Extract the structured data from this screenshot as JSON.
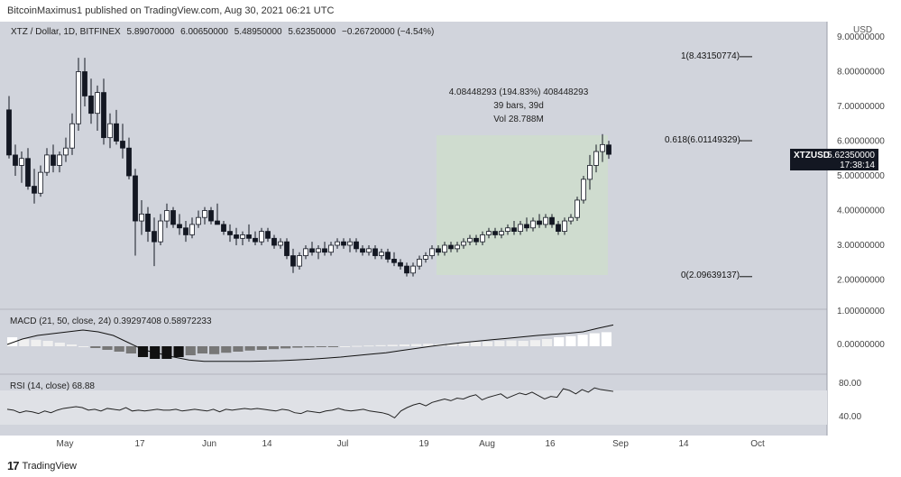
{
  "header": {
    "publisher": "BitcoinMaximus1 published on TradingView.com, Aug 30, 2021 06:21 UTC"
  },
  "footer": {
    "brand": "TradingView",
    "logo_glyph": "17"
  },
  "symbol": {
    "title": "XTZ / Dollar, 1D, BITFINEX",
    "open": "5.89070000",
    "high": "6.00650000",
    "low": "5.48950000",
    "close": "5.62350000",
    "change": "−0.26720000 (−4.54%)",
    "tag_symbol": "XTZUSD",
    "tag_price": "5.62350000",
    "tag_countdown": "17:38:14",
    "currency": "USD"
  },
  "measure": {
    "line1": "4.08448293 (194.83%) 408448293",
    "line2": "39 bars, 39d",
    "line3": "Vol 28.788M"
  },
  "fib": [
    {
      "label": "1(8.43150774)",
      "value": 8.4315
    },
    {
      "label": "0.618(6.01149329)",
      "value": 6.0115
    },
    {
      "label": "0(2.09639137)",
      "value": 2.0964
    }
  ],
  "indicators": {
    "macd_label": "MACD (21, 50, close, 24)",
    "macd_v1": "0.39297408",
    "macd_v2": "0.58972233",
    "rsi_label": "RSI (14, close)",
    "rsi_value": "68.88"
  },
  "colors": {
    "bg": "#d1d4dc",
    "box": "#cfdccf",
    "candle": "#131722",
    "upcandle": "#ffffff",
    "rsiband": "#dfe1e6"
  },
  "chart_data": {
    "type": "candlestick",
    "price_axis": {
      "ticks": [
        "9.00000000",
        "8.00000000",
        "7.00000000",
        "6.00000000",
        "5.00000000",
        "4.00000000",
        "3.00000000",
        "2.00000000"
      ],
      "ylim": [
        1.0,
        9.0
      ]
    },
    "macd_axis": {
      "ticks": [
        "1.00000000",
        "0.00000000"
      ]
    },
    "rsi_axis": {
      "ticks": [
        "80.00",
        "40.00"
      ]
    },
    "time_axis": [
      "May",
      "17",
      "Jun",
      "14",
      "Jul",
      "19",
      "Aug",
      "16",
      "Sep",
      "14",
      "Oct"
    ],
    "ohlc": [
      [
        6.9,
        7.3,
        5.5,
        5.6
      ],
      [
        5.6,
        5.9,
        5.0,
        5.3
      ],
      [
        5.3,
        5.7,
        4.8,
        5.5
      ],
      [
        5.5,
        5.8,
        4.6,
        4.7
      ],
      [
        4.7,
        5.2,
        4.2,
        4.5
      ],
      [
        4.5,
        5.3,
        4.4,
        5.1
      ],
      [
        5.1,
        5.8,
        5.0,
        5.6
      ],
      [
        5.6,
        5.9,
        5.1,
        5.3
      ],
      [
        5.3,
        5.7,
        5.1,
        5.6
      ],
      [
        5.6,
        6.1,
        5.4,
        5.8
      ],
      [
        5.8,
        6.8,
        5.6,
        6.5
      ],
      [
        6.5,
        8.4,
        6.3,
        8.0
      ],
      [
        8.0,
        8.4,
        7.0,
        7.3
      ],
      [
        7.3,
        7.8,
        6.5,
        6.8
      ],
      [
        6.8,
        7.6,
        6.3,
        7.4
      ],
      [
        7.4,
        7.8,
        5.9,
        6.1
      ],
      [
        6.1,
        6.8,
        5.8,
        6.5
      ],
      [
        6.5,
        6.9,
        5.9,
        6.0
      ],
      [
        6.0,
        6.5,
        5.5,
        5.8
      ],
      [
        5.8,
        6.1,
        4.9,
        5.0
      ],
      [
        5.0,
        5.2,
        2.7,
        3.7
      ],
      [
        3.7,
        4.3,
        3.3,
        3.9
      ],
      [
        3.9,
        4.1,
        3.1,
        3.4
      ],
      [
        3.4,
        3.8,
        2.4,
        3.1
      ],
      [
        3.1,
        3.9,
        3.0,
        3.7
      ],
      [
        3.7,
        4.2,
        3.5,
        4.0
      ],
      [
        4.0,
        4.1,
        3.5,
        3.6
      ],
      [
        3.6,
        3.9,
        3.3,
        3.5
      ],
      [
        3.5,
        3.7,
        3.1,
        3.3
      ],
      [
        3.3,
        3.8,
        3.2,
        3.6
      ],
      [
        3.6,
        4.0,
        3.5,
        3.8
      ],
      [
        3.8,
        4.1,
        3.6,
        4.0
      ],
      [
        4.0,
        4.1,
        3.6,
        3.7
      ],
      [
        3.7,
        4.2,
        3.6,
        3.6
      ],
      [
        3.6,
        3.7,
        3.3,
        3.4
      ],
      [
        3.4,
        3.6,
        3.1,
        3.3
      ],
      [
        3.3,
        3.5,
        3.0,
        3.2
      ],
      [
        3.2,
        3.4,
        3.0,
        3.3
      ],
      [
        3.3,
        3.6,
        3.1,
        3.2
      ],
      [
        3.2,
        3.4,
        3.0,
        3.1
      ],
      [
        3.1,
        3.5,
        3.0,
        3.4
      ],
      [
        3.4,
        3.5,
        3.1,
        3.2
      ],
      [
        3.2,
        3.3,
        2.9,
        3.0
      ],
      [
        3.0,
        3.2,
        2.9,
        3.1
      ],
      [
        3.1,
        3.2,
        2.6,
        2.7
      ],
      [
        2.7,
        2.9,
        2.2,
        2.4
      ],
      [
        2.4,
        2.8,
        2.3,
        2.7
      ],
      [
        2.7,
        3.0,
        2.6,
        2.9
      ],
      [
        2.9,
        3.1,
        2.7,
        2.8
      ],
      [
        2.8,
        3.0,
        2.6,
        2.9
      ],
      [
        2.9,
        3.1,
        2.7,
        2.8
      ],
      [
        2.8,
        3.1,
        2.7,
        3.0
      ],
      [
        3.0,
        3.2,
        2.9,
        3.1
      ],
      [
        3.1,
        3.2,
        2.9,
        3.0
      ],
      [
        3.0,
        3.2,
        2.8,
        3.1
      ],
      [
        3.1,
        3.2,
        2.8,
        2.9
      ],
      [
        2.9,
        3.0,
        2.7,
        2.8
      ],
      [
        2.8,
        3.0,
        2.7,
        2.9
      ],
      [
        2.9,
        3.0,
        2.6,
        2.7
      ],
      [
        2.7,
        2.9,
        2.6,
        2.8
      ],
      [
        2.8,
        2.9,
        2.5,
        2.6
      ],
      [
        2.6,
        2.8,
        2.4,
        2.5
      ],
      [
        2.5,
        2.6,
        2.3,
        2.4
      ],
      [
        2.4,
        2.5,
        2.1,
        2.2
      ],
      [
        2.2,
        2.5,
        2.1,
        2.4
      ],
      [
        2.4,
        2.7,
        2.3,
        2.6
      ],
      [
        2.6,
        2.8,
        2.5,
        2.7
      ],
      [
        2.7,
        3.0,
        2.6,
        2.9
      ],
      [
        2.9,
        3.0,
        2.7,
        2.8
      ],
      [
        2.8,
        3.1,
        2.7,
        3.0
      ],
      [
        3.0,
        3.1,
        2.8,
        2.9
      ],
      [
        2.9,
        3.1,
        2.8,
        3.0
      ],
      [
        3.0,
        3.2,
        2.9,
        3.1
      ],
      [
        3.1,
        3.3,
        3.0,
        3.2
      ],
      [
        3.2,
        3.3,
        3.0,
        3.1
      ],
      [
        3.1,
        3.4,
        3.0,
        3.3
      ],
      [
        3.3,
        3.5,
        3.2,
        3.4
      ],
      [
        3.4,
        3.5,
        3.2,
        3.3
      ],
      [
        3.3,
        3.5,
        3.2,
        3.4
      ],
      [
        3.4,
        3.6,
        3.3,
        3.5
      ],
      [
        3.5,
        3.7,
        3.3,
        3.4
      ],
      [
        3.4,
        3.7,
        3.3,
        3.6
      ],
      [
        3.6,
        3.8,
        3.4,
        3.5
      ],
      [
        3.5,
        3.8,
        3.4,
        3.7
      ],
      [
        3.7,
        3.9,
        3.5,
        3.6
      ],
      [
        3.6,
        3.9,
        3.5,
        3.8
      ],
      [
        3.8,
        3.9,
        3.5,
        3.6
      ],
      [
        3.6,
        3.7,
        3.3,
        3.4
      ],
      [
        3.4,
        3.8,
        3.3,
        3.7
      ],
      [
        3.7,
        3.9,
        3.6,
        3.8
      ],
      [
        3.8,
        4.4,
        3.7,
        4.3
      ],
      [
        4.3,
        5.0,
        4.2,
        4.9
      ],
      [
        4.9,
        5.6,
        4.6,
        5.3
      ],
      [
        5.3,
        5.9,
        5.1,
        5.7
      ],
      [
        5.7,
        6.2,
        5.4,
        5.9
      ],
      [
        5.89,
        6.01,
        5.49,
        5.62
      ]
    ],
    "rsi": [
      48,
      47,
      44,
      46,
      45,
      43,
      46,
      44,
      47,
      49,
      50,
      51,
      50,
      47,
      48,
      46,
      49,
      48,
      47,
      50,
      46,
      47,
      46,
      47,
      48,
      47,
      47,
      48,
      46,
      47,
      48,
      47,
      46,
      48,
      45,
      48,
      47,
      48,
      49,
      48,
      49,
      48,
      47,
      46,
      48,
      47,
      44,
      43,
      46,
      45,
      44,
      46,
      47,
      49,
      47,
      46,
      47,
      48,
      46,
      45,
      44,
      42,
      38,
      46,
      50,
      53,
      55,
      52,
      56,
      58,
      60,
      58,
      61,
      60,
      63,
      65,
      59,
      62,
      64,
      66,
      61,
      64,
      67,
      65,
      68,
      64,
      60,
      63,
      62,
      72,
      70,
      66,
      71,
      68,
      73,
      71,
      70,
      68.88
    ],
    "macd_hist": [
      0.25,
      0.2,
      0.18,
      0.15,
      0.1,
      0.05,
      0.0,
      -0.05,
      -0.1,
      -0.15,
      -0.2,
      -0.3,
      -0.35,
      -0.35,
      -0.3,
      -0.25,
      -0.2,
      -0.22,
      -0.18,
      -0.15,
      -0.12,
      -0.1,
      -0.08,
      -0.06,
      -0.04,
      -0.03,
      -0.02,
      -0.01,
      0.0,
      0.01,
      0.02,
      0.03,
      0.04,
      0.05,
      0.06,
      0.07,
      0.06,
      0.08,
      0.1,
      0.12,
      0.13,
      0.15,
      0.16,
      0.15,
      0.17,
      0.2,
      0.25,
      0.28,
      0.32,
      0.36,
      0.39
    ],
    "macd_line": [
      0.05,
      0.2,
      0.3,
      0.35,
      0.4,
      0.45,
      0.4,
      0.3,
      0.1,
      -0.1,
      -0.2,
      -0.3,
      -0.38,
      -0.42,
      -0.42,
      -0.42,
      -0.42,
      -0.41,
      -0.4,
      -0.38,
      -0.36,
      -0.33,
      -0.3,
      -0.26,
      -0.22,
      -0.18,
      -0.12,
      -0.06,
      0.0,
      0.05,
      0.1,
      0.14,
      0.18,
      0.22,
      0.26,
      0.3,
      0.33,
      0.36,
      0.4,
      0.5,
      0.59
    ]
  }
}
